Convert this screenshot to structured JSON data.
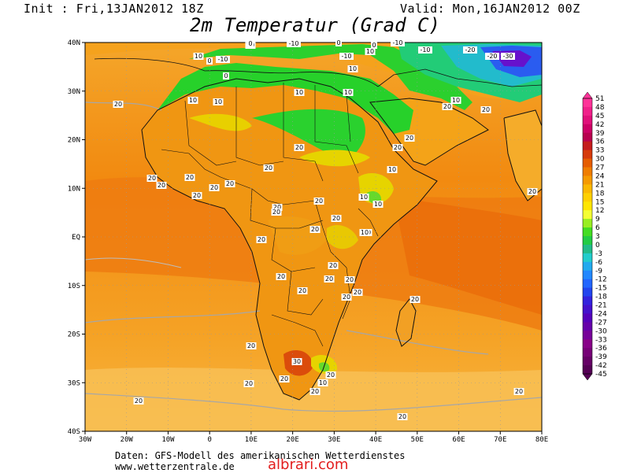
{
  "header": {
    "init": "Init : Fri,13JAN2012 18Z",
    "valid": "Valid: Mon,16JAN2012 00Z",
    "title": "2m Temperatur (Grad C)"
  },
  "footer": {
    "line1": "Daten: GFS-Modell des amerikanischen Wetterdienstes",
    "line2": "www.wetterzentrale.de",
    "watermark": "albrari.com"
  },
  "map": {
    "lat_labels": [
      "40N",
      "30N",
      "20N",
      "10N",
      "EQ",
      "10S",
      "20S",
      "30S",
      "40S"
    ],
    "lon_labels": [
      "30W",
      "20W",
      "10W",
      "0",
      "10E",
      "20E",
      "30E",
      "40E",
      "50E",
      "60E",
      "70E",
      "80E"
    ]
  },
  "legend": {
    "values": [
      "51",
      "48",
      "45",
      "42",
      "39",
      "36",
      "33",
      "30",
      "27",
      "24",
      "21",
      "18",
      "15",
      "12",
      "9",
      "6",
      "3",
      "0",
      "-3",
      "-6",
      "-9",
      "-12",
      "-15",
      "-18",
      "-21",
      "-24",
      "-27",
      "-30",
      "-33",
      "-36",
      "-39",
      "-42",
      "-45"
    ],
    "colors": [
      "#ff3399",
      "#f0208a",
      "#e0107a",
      "#cc0066",
      "#b8004f",
      "#c41c1c",
      "#d63a0a",
      "#e55d00",
      "#ef7d00",
      "#f59a00",
      "#fbb800",
      "#ffd000",
      "#ffe600",
      "#f4ff33",
      "#99ee22",
      "#44dd22",
      "#22cc44",
      "#22bb88",
      "#22cccc",
      "#22aaee",
      "#2288ff",
      "#2266ff",
      "#2244ee",
      "#3322dd",
      "#4411cc",
      "#5500bb",
      "#6600aa",
      "#770099",
      "#880088",
      "#770077",
      "#660066",
      "#550055"
    ]
  },
  "contour_labels": [
    "10",
    "-10",
    "0",
    "-10",
    "0",
    "-10",
    "-20",
    "10",
    "0",
    "-10",
    "0",
    "-20",
    "-30",
    "-10",
    "10",
    "10",
    "0",
    "20",
    "10",
    "10",
    "10",
    "10",
    "20",
    "10",
    "20",
    "20",
    "10",
    "20",
    "20",
    "10",
    "20",
    "20",
    "20",
    "20",
    "20",
    "20",
    "20",
    "10",
    "20",
    "20",
    "20",
    "20",
    "20",
    "10",
    "20",
    "20",
    "20",
    "20",
    "20",
    "20",
    "20",
    "20",
    "20",
    "20",
    "30",
    "20",
    "10",
    "20",
    "20",
    "20",
    "20",
    "20",
    "20",
    "20",
    "20"
  ]
}
